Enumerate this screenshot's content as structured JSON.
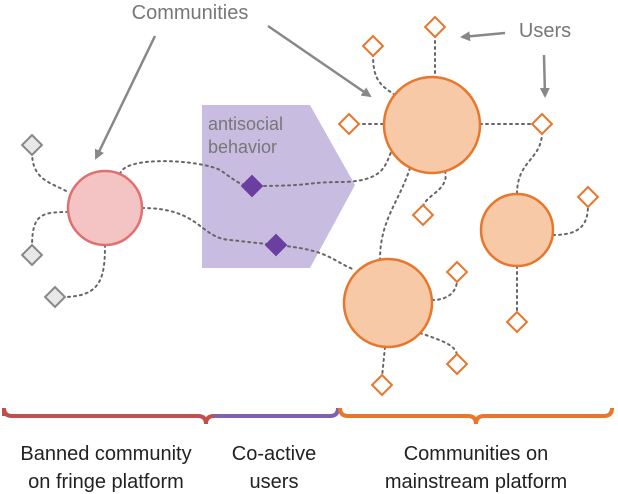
{
  "annotations": {
    "communities": "Communities",
    "users": "Users",
    "antisocial": [
      "antisocial",
      "behavior"
    ]
  },
  "groups": [
    {
      "label": [
        "Banned community",
        "on fringe platform"
      ]
    },
    {
      "label": [
        "Co-active",
        "users"
      ]
    },
    {
      "label": [
        "Communities on",
        "mainstream platform"
      ]
    }
  ]
}
